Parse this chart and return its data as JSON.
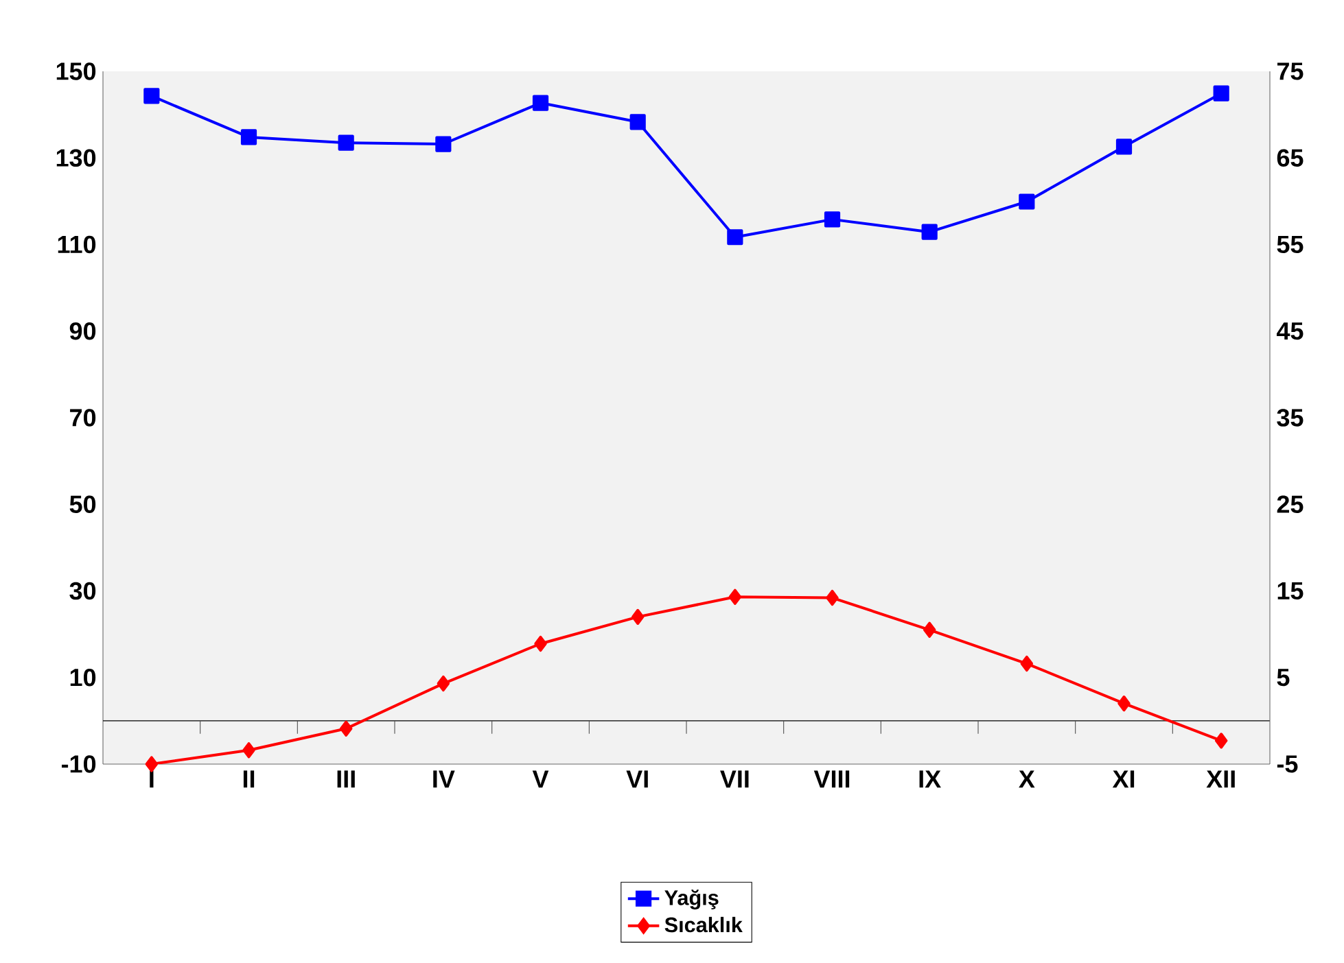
{
  "chart_data": {
    "type": "line",
    "categories": [
      "I",
      "II",
      "III",
      "IV",
      "V",
      "VI",
      "VII",
      "VIII",
      "IX",
      "X",
      "XI",
      "XII"
    ],
    "series": [
      {
        "name": "Yağış",
        "color": "#0000ff",
        "marker": "square",
        "values": [
          144.3,
          134.8,
          133.5,
          133.2,
          142.7,
          138.3,
          111.7,
          115.8,
          112.9,
          119.9,
          132.6,
          144.9
        ]
      },
      {
        "name": "Sıcaklık",
        "color": "#ff0000",
        "marker": "diamond",
        "axis": "y2",
        "values": [
          -5.0,
          -3.4,
          -0.9,
          4.3,
          8.9,
          12.0,
          14.3,
          14.2,
          10.5,
          6.6,
          2.0,
          -2.3
        ]
      }
    ],
    "ylim": [
      -10,
      150
    ],
    "yticks": [
      -10,
      10,
      30,
      50,
      70,
      90,
      110,
      130,
      150
    ],
    "y2lim": [
      -5,
      75
    ],
    "y2ticks": [
      -5,
      5,
      15,
      25,
      35,
      45,
      55,
      65,
      75
    ],
    "grid": false,
    "legend": "bottom"
  }
}
